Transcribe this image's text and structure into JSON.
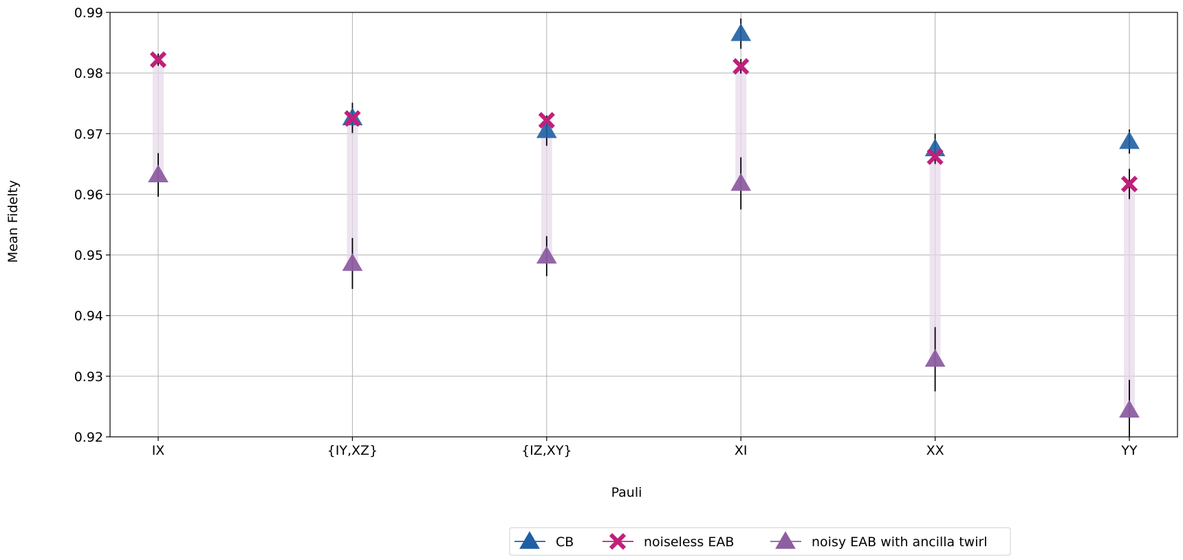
{
  "chart_data": {
    "type": "scatter",
    "xlabel": "Pauli",
    "ylabel": "Mean Fidelty",
    "categories": [
      "IX",
      "{IY,XZ}",
      "{IZ,XY}",
      "XI",
      "XX",
      "YY"
    ],
    "ylim": [
      0.92,
      0.99
    ],
    "yticks": [
      "0.92",
      "0.93",
      "0.94",
      "0.95",
      "0.96",
      "0.97",
      "0.98",
      "0.99"
    ],
    "grid": true,
    "legend_position": "bottom-center, below plot",
    "series": [
      {
        "name": "CB",
        "marker": "triangle",
        "color": "#1f5fa3",
        "values": [
          null,
          0.9726,
          0.9705,
          0.9865,
          0.9675,
          0.9687
        ],
        "error": [
          null,
          0.0025,
          0.0025,
          0.0025,
          0.0025,
          0.002
        ]
      },
      {
        "name": "noiseless EAB",
        "marker": "x",
        "color": "#c0207a",
        "values": [
          0.9822,
          0.9725,
          0.9722,
          0.9811,
          0.9662,
          0.9617
        ],
        "error": [
          0.001,
          0.0003,
          0.0003,
          0.0012,
          0.0003,
          0.0025
        ]
      },
      {
        "name": "noisy EAB with ancilla twirl",
        "marker": "triangle",
        "color": "#8e5ea2",
        "values": [
          0.9632,
          0.9486,
          0.9498,
          0.9618,
          0.9328,
          0.9244
        ],
        "error": [
          0.0036,
          0.0042,
          0.0033,
          0.0043,
          0.0053,
          0.005
        ]
      }
    ],
    "band_color": "#e6d8ea"
  }
}
